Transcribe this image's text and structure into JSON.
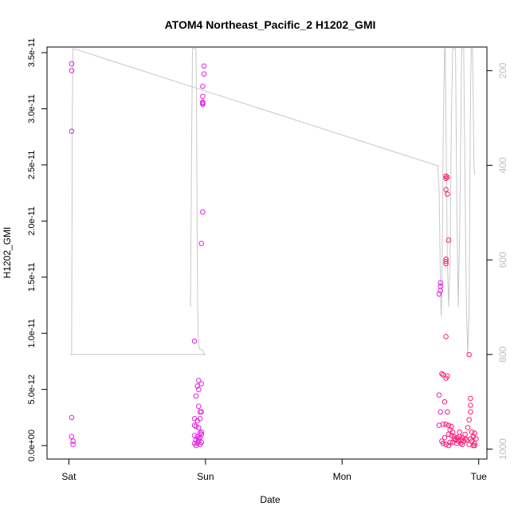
{
  "chart_data": {
    "type": "scatter",
    "title": "ATOM4 Northeast_Pacific_2 H1202_GMI",
    "xlabel": "Date",
    "ylabel": "H1202_GMI",
    "x_ticks": [
      {
        "value": 0,
        "label": "Sat"
      },
      {
        "value": 1,
        "label": "Sun"
      },
      {
        "value": 2,
        "label": "Mon"
      },
      {
        "value": 3,
        "label": "Tue"
      }
    ],
    "xlim": [
      -0.16,
      3.06
    ],
    "ylim": [
      -1.2e-12,
      3.55e-11
    ],
    "y_ticks": [
      {
        "value": 0,
        "label": "0.0e+00"
      },
      {
        "value": 5e-12,
        "label": "5.0e-12"
      },
      {
        "value": 1e-11,
        "label": "1.0e-11"
      },
      {
        "value": 1.5e-11,
        "label": "1.5e-11"
      },
      {
        "value": 2e-11,
        "label": "2.0e-11"
      },
      {
        "value": 2.5e-11,
        "label": "2.5e-11"
      },
      {
        "value": 3e-11,
        "label": "3.0e-11"
      },
      {
        "value": 3.5e-11,
        "label": "3.5e-11"
      }
    ],
    "y2_ticks": [
      {
        "value": 200,
        "label": "200"
      },
      {
        "value": 400,
        "label": "400"
      },
      {
        "value": 600,
        "label": "600"
      },
      {
        "value": 800,
        "label": "800"
      },
      {
        "value": 1000,
        "label": "1000"
      }
    ],
    "y2lim": [
      1021,
      150
    ],
    "colors": {
      "point_magenta": "#e020e0",
      "point_pink": "#ff1a75",
      "line": "#c8c8c8",
      "axis": "#000000",
      "y2_labels": "#bdbdbd"
    },
    "series": [
      {
        "color": "#e020e0",
        "points": [
          [
            0.02,
            3.4e-11
          ],
          [
            0.02,
            3.34e-11
          ],
          [
            0.02,
            2.8e-11
          ],
          [
            0.02,
            2.5e-12
          ],
          [
            0.02,
            8e-13
          ],
          [
            0.03,
            4e-13
          ],
          [
            0.03,
            1e-13
          ],
          [
            0.92,
            9.3e-12
          ],
          [
            0.98,
            2.08e-11
          ],
          [
            0.97,
            1.8e-11
          ],
          [
            0.99,
            3.38e-11
          ],
          [
            0.99,
            3.31e-11
          ],
          [
            0.98,
            3.2e-11
          ],
          [
            0.98,
            3.11e-11
          ],
          [
            0.98,
            3.06e-11
          ],
          [
            0.98,
            3.05e-11
          ],
          [
            0.98,
            3.04e-11
          ],
          [
            0.95,
            5.8e-12
          ],
          [
            0.94,
            5.3e-12
          ],
          [
            0.95,
            5e-12
          ],
          [
            0.93,
            4.4e-12
          ],
          [
            0.97,
            5.5e-12
          ],
          [
            0.95,
            3.5e-12
          ],
          [
            0.96,
            3e-12
          ],
          [
            0.97,
            3e-12
          ],
          [
            0.92,
            2.4e-12
          ],
          [
            0.94,
            2.2e-12
          ],
          [
            0.96,
            2.4e-12
          ],
          [
            0.92,
            1.8e-12
          ],
          [
            0.93,
            1.7e-12
          ],
          [
            0.95,
            1.6e-12
          ],
          [
            0.97,
            1.2e-12
          ],
          [
            0.96,
            1.1e-12
          ],
          [
            0.92,
            9e-13
          ],
          [
            0.94,
            8e-13
          ],
          [
            0.96,
            7e-13
          ],
          [
            0.93,
            5e-13
          ],
          [
            0.95,
            4e-13
          ],
          [
            0.97,
            3e-13
          ],
          [
            0.94,
            2e-13
          ],
          [
            0.96,
            1e-13
          ],
          [
            0.93,
            0.0
          ],
          [
            0.95,
            6e-13
          ],
          [
            0.97,
            1e-12
          ],
          [
            0.92,
            2e-13
          ],
          [
            2.72,
            1.45e-11
          ],
          [
            2.72,
            1.42e-11
          ],
          [
            2.72,
            1.38e-11
          ],
          [
            2.71,
            1.35e-11
          ],
          [
            2.71,
            4.5e-12
          ],
          [
            2.72,
            3e-12
          ],
          [
            2.71,
            1.8e-12
          ],
          [
            2.73,
            4e-13
          ]
        ]
      },
      {
        "color": "#ff1a75",
        "points": [
          [
            2.76,
            2.4e-11
          ],
          [
            2.77,
            2.39e-11
          ],
          [
            2.76,
            2.38e-11
          ],
          [
            2.76,
            2.28e-11
          ],
          [
            2.77,
            2.24e-11
          ],
          [
            2.78,
            1.83e-11
          ],
          [
            2.76,
            1.66e-11
          ],
          [
            2.76,
            1.64e-11
          ],
          [
            2.76,
            1.62e-11
          ],
          [
            2.76,
            9.7e-12
          ],
          [
            2.73,
            6.4e-12
          ],
          [
            2.74,
            6.3e-12
          ],
          [
            2.77,
            6.2e-12
          ],
          [
            2.76,
            6e-12
          ],
          [
            2.93,
            8.1e-12
          ],
          [
            2.94,
            4.2e-12
          ],
          [
            2.94,
            3.6e-12
          ],
          [
            2.94,
            3e-12
          ],
          [
            2.93,
            2.3e-12
          ],
          [
            2.75,
            3.9e-12
          ],
          [
            2.77,
            3e-12
          ],
          [
            2.74,
            1.9e-12
          ],
          [
            2.76,
            1.9e-12
          ],
          [
            2.78,
            1.8e-12
          ],
          [
            2.8,
            1.7e-12
          ],
          [
            2.79,
            1.4e-12
          ],
          [
            2.81,
            1.2e-12
          ],
          [
            2.78,
            1e-12
          ],
          [
            2.8,
            9e-13
          ],
          [
            2.82,
            8e-13
          ],
          [
            2.84,
            7e-13
          ],
          [
            2.86,
            8e-13
          ],
          [
            2.88,
            7e-13
          ],
          [
            2.9,
            6e-13
          ],
          [
            2.83,
            5e-13
          ],
          [
            2.85,
            4e-13
          ],
          [
            2.87,
            5e-13
          ],
          [
            2.89,
            4e-13
          ],
          [
            2.91,
            5e-13
          ],
          [
            2.81,
            3e-13
          ],
          [
            2.84,
            2e-13
          ],
          [
            2.87,
            2e-13
          ],
          [
            2.74,
            2e-13
          ],
          [
            2.76,
            1e-13
          ],
          [
            2.78,
            0.0
          ],
          [
            2.92,
            1.6e-12
          ],
          [
            2.95,
            1.2e-12
          ],
          [
            2.96,
            8e-13
          ],
          [
            2.97,
            1.1e-12
          ],
          [
            2.95,
            4e-13
          ],
          [
            2.97,
            2e-13
          ],
          [
            2.96,
            0.0
          ],
          [
            2.93,
            1e-13
          ],
          [
            2.9,
            1e-12
          ],
          [
            2.86,
            1.2e-12
          ],
          [
            2.82,
            6e-13
          ],
          [
            2.75,
            7e-13
          ],
          [
            2.79,
            3e-13
          ],
          [
            2.88,
            1e-13
          ],
          [
            2.94,
            6e-13
          ],
          [
            2.98,
            6e-13
          ],
          [
            2.97,
            0.0
          ]
        ]
      }
    ],
    "line_series": {
      "axis": "y2",
      "segments": [
        [
          [
            0.01,
            800
          ],
          [
            0.02,
            800
          ],
          [
            0.02,
            780
          ],
          [
            0.025,
            300
          ],
          [
            0.03,
            153
          ],
          [
            2.7,
            401
          ],
          [
            2.71,
            401
          ]
        ],
        [
          [
            2.7,
            401
          ],
          [
            2.71,
            450
          ],
          [
            2.72,
            650
          ],
          [
            2.725,
            720
          ],
          [
            2.73,
            680
          ],
          [
            2.735,
            520
          ],
          [
            2.74,
            350
          ],
          [
            2.745,
            240
          ],
          [
            2.75,
            153
          ],
          [
            2.755,
            153
          ],
          [
            2.76,
            300
          ],
          [
            2.77,
            600
          ],
          [
            2.78,
            700
          ],
          [
            2.79,
            600
          ],
          [
            2.8,
            300
          ],
          [
            2.81,
            153
          ],
          [
            2.83,
            153
          ],
          [
            2.84,
            500
          ],
          [
            2.85,
            700
          ],
          [
            2.86,
            550
          ],
          [
            2.87,
            300
          ],
          [
            2.875,
            153
          ],
          [
            2.89,
            153
          ],
          [
            2.9,
            450
          ],
          [
            2.91,
            700
          ],
          [
            2.92,
            800
          ],
          [
            2.93,
            700
          ],
          [
            2.935,
            450
          ],
          [
            2.94,
            250
          ],
          [
            2.945,
            153
          ],
          [
            2.955,
            153
          ],
          [
            2.96,
            280
          ],
          [
            2.965,
            400
          ],
          [
            2.97,
            420
          ]
        ],
        [
          [
            0.02,
            800
          ],
          [
            1.0,
            800
          ]
        ],
        [
          [
            0.89,
            700
          ],
          [
            0.895,
            500
          ],
          [
            0.9,
            300
          ],
          [
            0.905,
            153
          ],
          [
            0.93,
            153
          ],
          [
            0.935,
            300
          ],
          [
            0.94,
            600
          ],
          [
            0.945,
            750
          ],
          [
            0.95,
            780
          ],
          [
            0.96,
            790
          ],
          [
            0.98,
            790
          ],
          [
            0.99,
            800
          ],
          [
            1.0,
            800
          ]
        ]
      ]
    }
  }
}
